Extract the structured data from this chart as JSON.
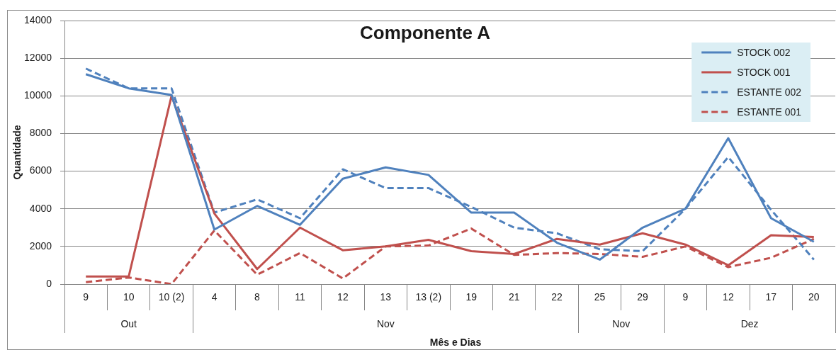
{
  "chart_data": {
    "type": "line",
    "title": "Componente A",
    "xlabel": "Mês e Dias",
    "ylabel": "Quantidade",
    "categories": [
      "9",
      "10",
      "10 (2)",
      "4",
      "8",
      "11",
      "12",
      "13",
      "13 (2)",
      "19",
      "21",
      "22",
      "25",
      "29",
      "9",
      "12",
      "17",
      "20"
    ],
    "annotations": [
      "Out",
      "Nov",
      "Nov",
      "Dez"
    ],
    "series": [
      {
        "name": "STOCK 002",
        "color": "#4f81bd",
        "line_style": "solid",
        "values": [
          11150,
          10400,
          10050,
          2900,
          4150,
          3150,
          5600,
          6200,
          5800,
          3800,
          3800,
          2200,
          1300,
          3000,
          4000,
          7750,
          3500,
          2250
        ]
      },
      {
        "name": "STOCK 001",
        "color": "#c0504d",
        "line_style": "solid",
        "values": [
          400,
          400,
          10000,
          3750,
          800,
          3000,
          1800,
          2000,
          2350,
          1750,
          1600,
          2400,
          2100,
          2700,
          2100,
          1000,
          2600,
          2500
        ]
      },
      {
        "name": "ESTANTE 002",
        "color": "#4f81bd",
        "line_style": "dashed",
        "values": [
          11450,
          10400,
          10400,
          3800,
          4500,
          3500,
          6100,
          5100,
          5100,
          4100,
          3000,
          2700,
          1850,
          1750,
          4000,
          6750,
          3950,
          1300
        ]
      },
      {
        "name": "ESTANTE 001",
        "color": "#c0504d",
        "line_style": "dashed",
        "values": [
          100,
          350,
          0,
          2850,
          500,
          1650,
          300,
          2000,
          2050,
          2950,
          1550,
          1650,
          1600,
          1450,
          2000,
          900,
          1400,
          2400
        ]
      }
    ],
    "ylim": [
      0,
      14000
    ],
    "yticks": [
      0,
      2000,
      4000,
      6000,
      8000,
      10000,
      12000,
      14000
    ],
    "grid": "y",
    "legend": "top right"
  }
}
